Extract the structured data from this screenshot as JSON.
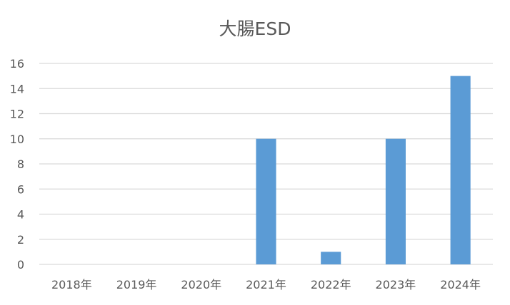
{
  "chart_data": {
    "type": "bar",
    "title": "大腸ESD",
    "xlabel": "",
    "ylabel": "",
    "categories": [
      "2018年",
      "2019年",
      "2020年",
      "2021年",
      "2022年",
      "2023年",
      "2024年"
    ],
    "series": [
      {
        "values": [
          0,
          0,
          0,
          10,
          1,
          10,
          15
        ],
        "color": "#5b9bd5"
      }
    ],
    "ylim": [
      0,
      16
    ],
    "yticks": [
      0,
      2,
      4,
      6,
      8,
      10,
      12,
      14,
      16
    ],
    "grid": true,
    "legend": "none"
  }
}
